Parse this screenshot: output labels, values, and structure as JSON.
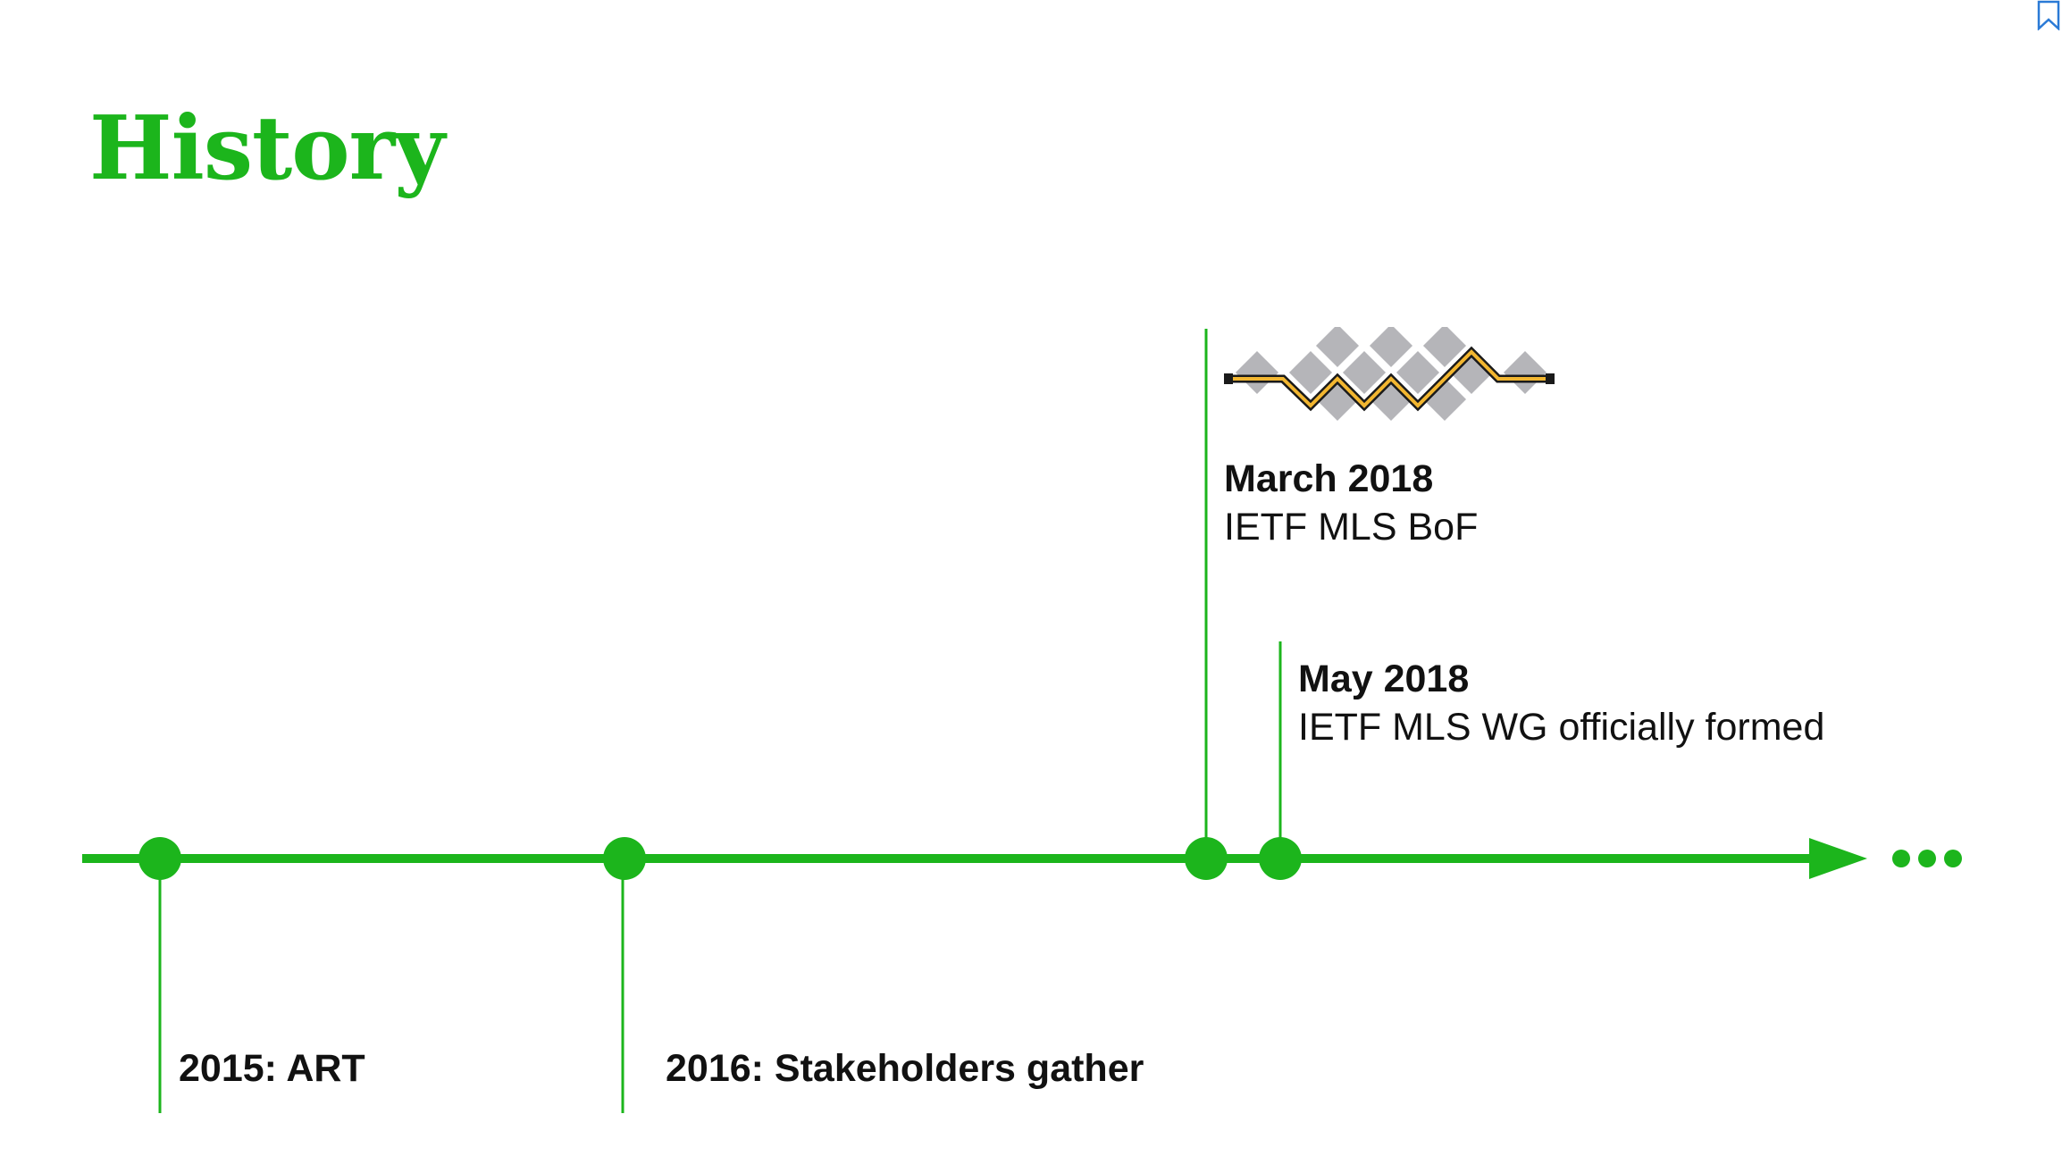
{
  "slide": {
    "title": "History",
    "accent_color": "#1cb51c"
  },
  "timeline": {
    "events": [
      {
        "id": "2015",
        "label": "2015: ART"
      },
      {
        "id": "2016",
        "label": "2016: Stakeholders gather"
      },
      {
        "id": "mar2018",
        "date": "March 2018",
        "description": "IETF MLS BoF"
      },
      {
        "id": "may2018",
        "date": "May 2018",
        "description": "IETF MLS WG officially formed"
      }
    ],
    "continuation": "..."
  },
  "icons": {
    "logo": "ietf-mls-logo-icon",
    "bookmark": "bookmark-icon"
  }
}
